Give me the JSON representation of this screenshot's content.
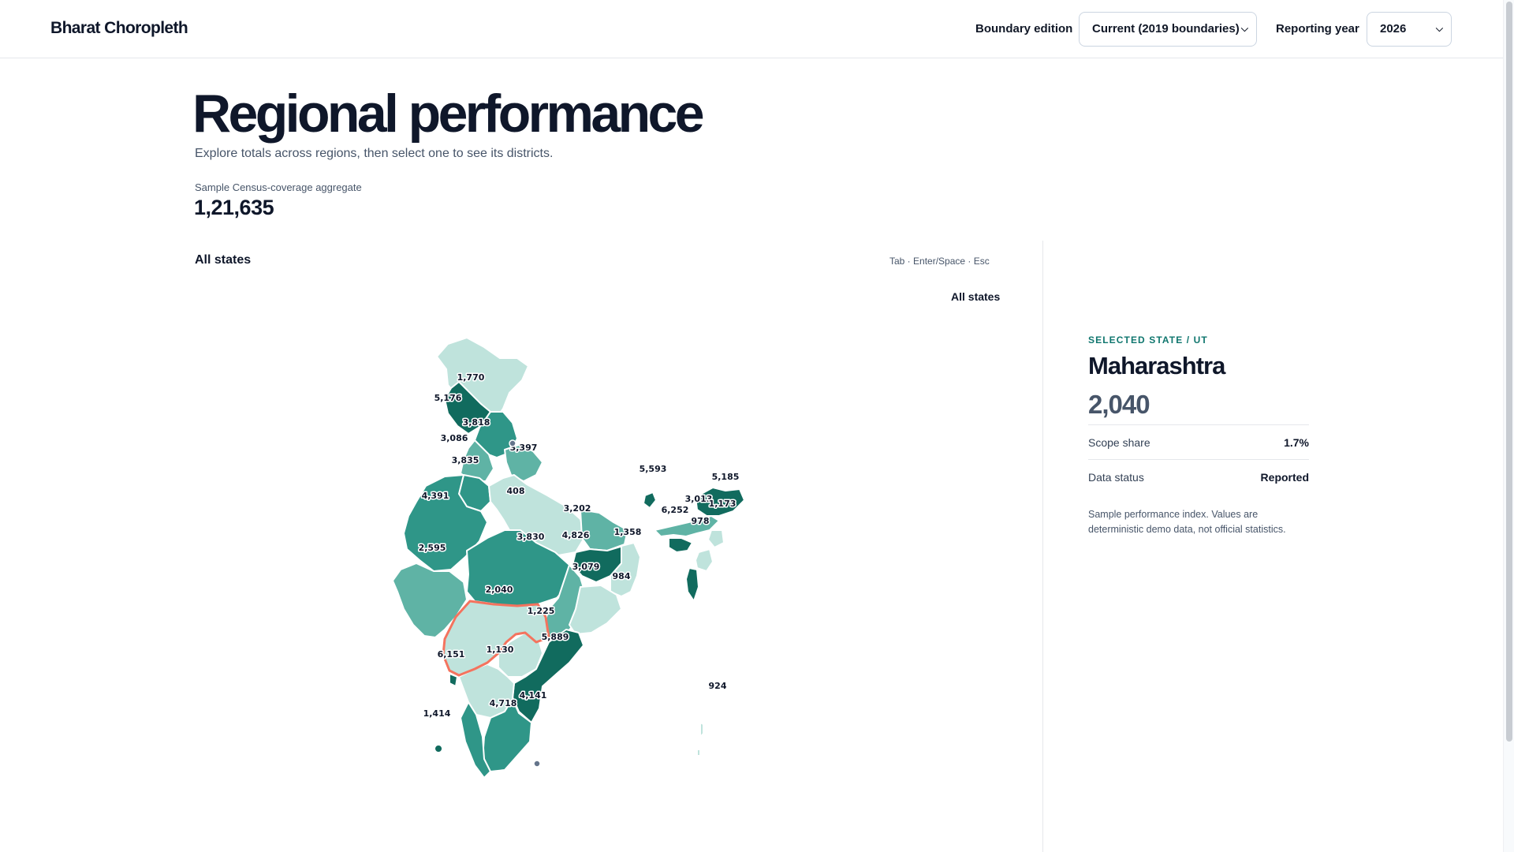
{
  "app": {
    "brand": "Bharat Choropleth"
  },
  "controls": {
    "boundary_label": "Boundary edition",
    "boundary_value": "Current (2019 boundaries)",
    "year_label": "Reporting year",
    "year_value": "2026"
  },
  "hero": {
    "title": "Regional performance",
    "subtitle": "Explore totals across regions, then select one to see its districts.",
    "aggregate_label": "Sample Census-coverage aggregate",
    "aggregate_value": "1,21,635"
  },
  "panel": {
    "title": "All states",
    "keyboard_hint": "Tab · Enter/Space · Esc",
    "breadcrumb": "All states"
  },
  "map": {
    "colors": {
      "light": "#bfe3dc",
      "mid": "#5fb3a5",
      "teal": "#2f9688",
      "dark": "#116b5e",
      "highlight": "#f4735e"
    },
    "regions": [
      {
        "id": "jk",
        "value": "1,770",
        "tone": "light"
      },
      {
        "id": "hp",
        "value": "5,176",
        "tone": "dark"
      },
      {
        "id": "pb",
        "value": "3,818",
        "tone": "teal"
      },
      {
        "id": "hr",
        "value": "3,086",
        "tone": "mid"
      },
      {
        "id": "uk",
        "value": "3,397",
        "tone": "mid"
      },
      {
        "id": "dl",
        "value": "3,835",
        "tone": "teal"
      },
      {
        "id": "rj",
        "value": "4,391",
        "tone": "teal"
      },
      {
        "id": "up",
        "value": "408",
        "tone": "light"
      },
      {
        "id": "br",
        "value": "3,202",
        "tone": "mid"
      },
      {
        "id": "jh",
        "value": "4,826",
        "tone": "dark"
      },
      {
        "id": "wb",
        "value": "1,358",
        "tone": "light"
      },
      {
        "id": "sk",
        "value": "5,593",
        "tone": "dark"
      },
      {
        "id": "ar",
        "value": "5,185",
        "tone": "dark"
      },
      {
        "id": "as",
        "value": "3,013",
        "tone": "mid"
      },
      {
        "id": "ml",
        "value": "6,252",
        "tone": "dark"
      },
      {
        "id": "nl",
        "value": "1,173",
        "tone": "light"
      },
      {
        "id": "mn",
        "value": "978",
        "tone": "light"
      },
      {
        "id": "tr",
        "value": "",
        "tone": "dark"
      },
      {
        "id": "gj",
        "value": "2,595",
        "tone": "mid"
      },
      {
        "id": "mp",
        "value": "3,830",
        "tone": "teal"
      },
      {
        "id": "cg",
        "value": "3,079",
        "tone": "mid"
      },
      {
        "id": "or",
        "value": "984",
        "tone": "light"
      },
      {
        "id": "mh",
        "value": "2,040",
        "tone": "light",
        "selected": true
      },
      {
        "id": "tg",
        "value": "1,225",
        "tone": "light"
      },
      {
        "id": "ap",
        "value": "5,889",
        "tone": "dark"
      },
      {
        "id": "ka",
        "value": "1,130",
        "tone": "light"
      },
      {
        "id": "goa",
        "value": "6,151",
        "tone": "dark"
      },
      {
        "id": "tn",
        "value": "4,141",
        "tone": "teal"
      },
      {
        "id": "kl",
        "value": "4,718",
        "tone": "teal"
      },
      {
        "id": "ld",
        "value": "1,414",
        "tone": "dark"
      },
      {
        "id": "an",
        "value": "924",
        "tone": "light"
      }
    ]
  },
  "selected": {
    "kicker": "SELECTED STATE / UT",
    "name": "Maharashtra",
    "value": "2,040",
    "scope_label": "Scope share",
    "scope_value": "1.7%",
    "status_label": "Data status",
    "status_value": "Reported",
    "note": "Sample performance index. Values are deterministic demo data, not official statistics."
  }
}
